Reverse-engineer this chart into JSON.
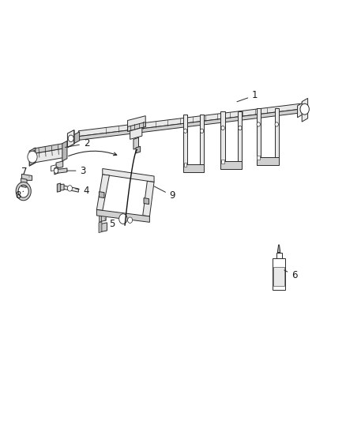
{
  "background_color": "#ffffff",
  "figure_width": 4.38,
  "figure_height": 5.33,
  "dpi": 100,
  "line_color": "#2a2a2a",
  "label_color": "#1a1a1a",
  "label_fontsize": 8.5,
  "face_light": "#e8e8e8",
  "face_mid": "#d0d0d0",
  "face_dark": "#b8b8b8"
}
